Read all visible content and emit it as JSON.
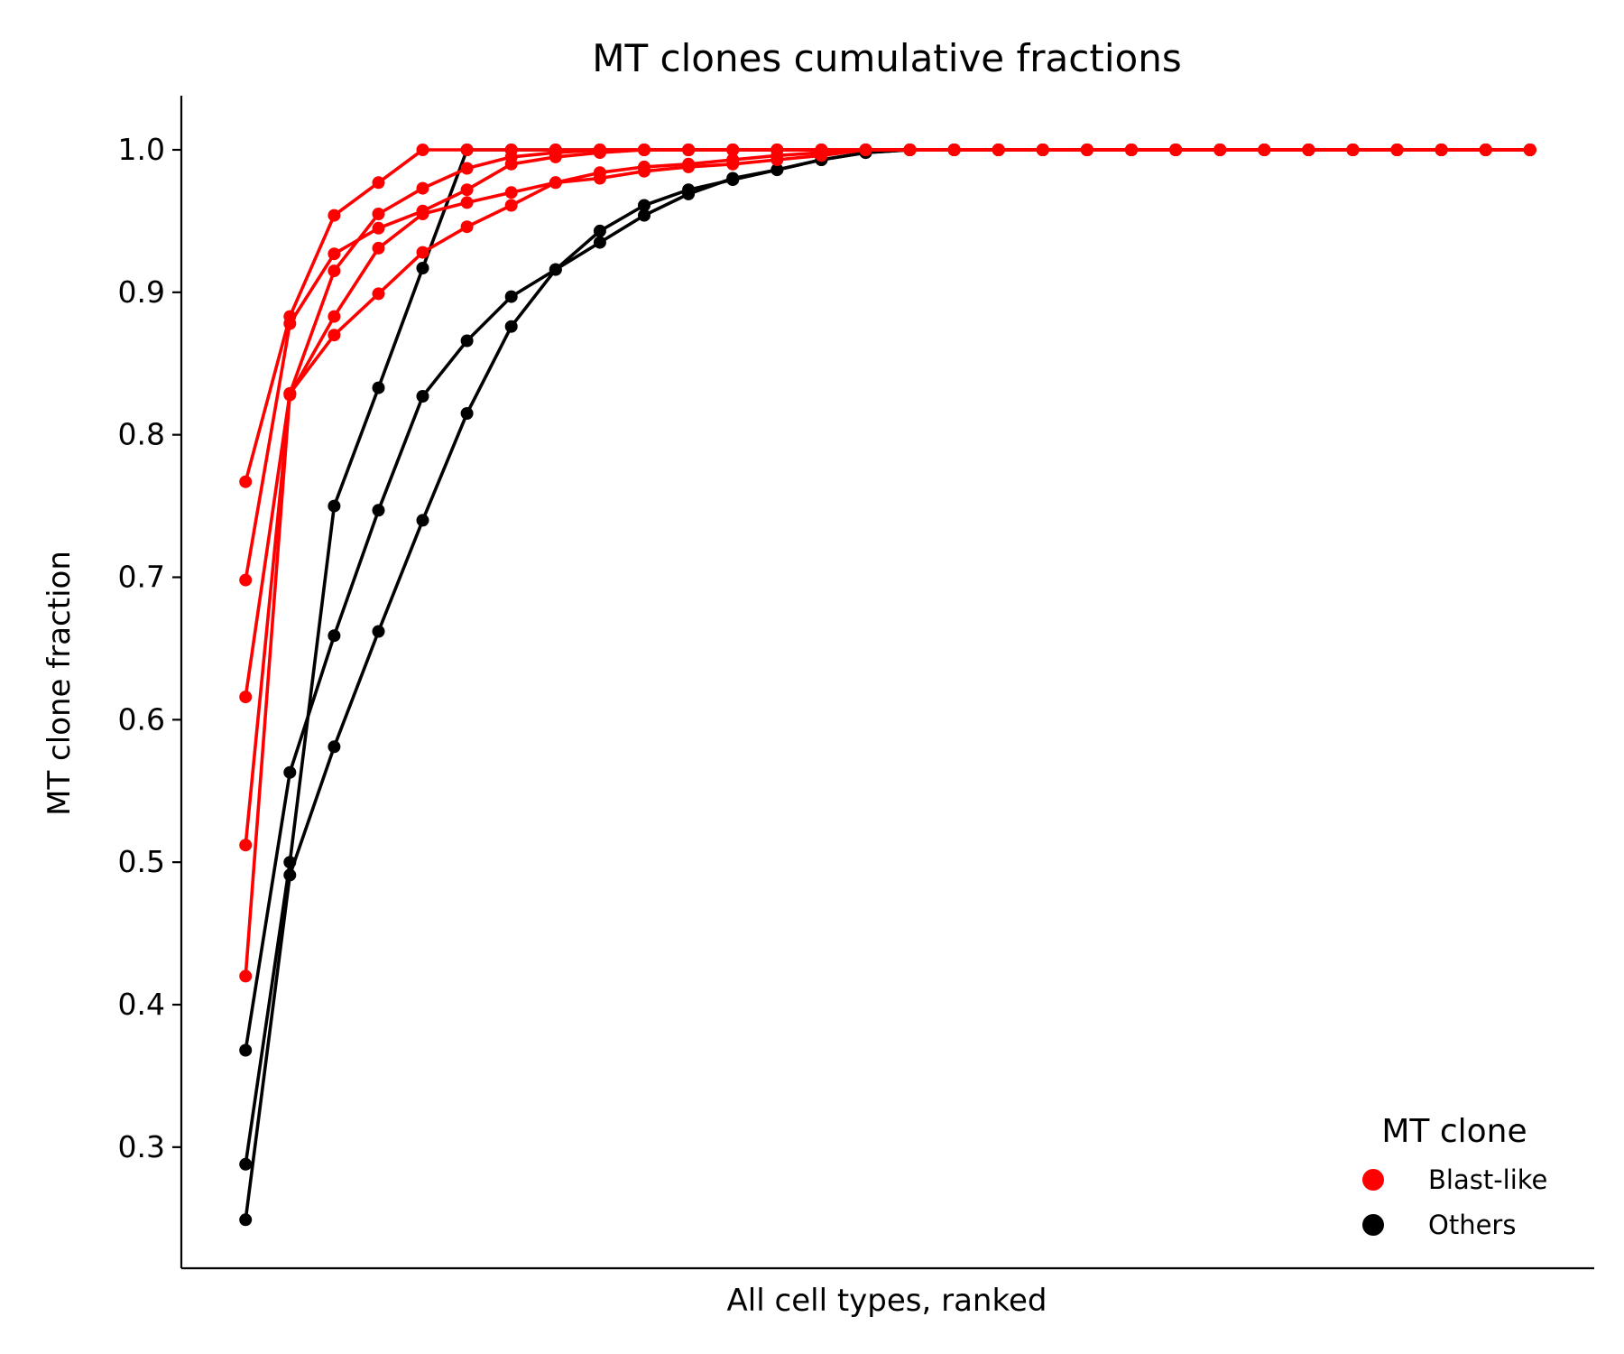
{
  "chart_data": {
    "type": "line",
    "title": "MT clones cumulative fractions",
    "xlabel": "All cell types, ranked",
    "ylabel": "MT clone fraction",
    "ylim": [
      0.215,
      1.038
    ],
    "xlim": [
      -1.45,
      30.45
    ],
    "yticks": [
      0.3,
      0.4,
      0.5,
      0.6,
      0.7,
      0.8,
      0.9,
      1.0
    ],
    "ytick_labels": [
      "0.3",
      "0.4",
      "0.5",
      "0.6",
      "0.7",
      "0.8",
      "0.9",
      "1.0"
    ],
    "grid": false,
    "legend": {
      "title": "MT clone",
      "placement": "lower-right",
      "entries": [
        {
          "label": "Blast-like",
          "color": "#ff0000"
        },
        {
          "label": "Others",
          "color": "#000000"
        }
      ]
    },
    "x": [
      0,
      1,
      2,
      3,
      4,
      5,
      6,
      7,
      8,
      9,
      10,
      11,
      12,
      13,
      14,
      15,
      16,
      17,
      18,
      19,
      20,
      21,
      22,
      23,
      24,
      25,
      26,
      27,
      28,
      29
    ],
    "series": [
      {
        "group": "Others",
        "color": "#000000",
        "values": [
          0.288,
          0.5,
          0.75,
          0.833,
          0.917,
          1.0,
          1.0,
          1.0,
          1.0,
          1.0,
          1.0,
          1.0,
          1.0,
          1.0,
          1.0,
          1.0,
          1.0,
          1.0,
          1.0,
          1.0,
          1.0,
          1.0,
          1.0,
          1.0,
          1.0,
          1.0,
          1.0,
          1.0,
          1.0,
          1.0
        ]
      },
      {
        "group": "Others",
        "color": "#000000",
        "values": [
          0.368,
          0.563,
          0.659,
          0.747,
          0.827,
          0.866,
          0.897,
          0.916,
          0.935,
          0.954,
          0.969,
          0.98,
          0.986,
          0.993,
          0.998,
          1.0,
          1.0,
          1.0,
          1.0,
          1.0,
          1.0,
          1.0,
          1.0,
          1.0,
          1.0,
          1.0,
          1.0,
          1.0,
          1.0,
          1.0
        ]
      },
      {
        "group": "Others",
        "color": "#000000",
        "values": [
          0.249,
          0.491,
          0.581,
          0.662,
          0.74,
          0.815,
          0.876,
          0.916,
          0.943,
          0.961,
          0.972,
          0.979,
          0.986,
          0.993,
          0.998,
          1.0,
          1.0,
          1.0,
          1.0,
          1.0,
          1.0,
          1.0,
          1.0,
          1.0,
          1.0,
          1.0,
          1.0,
          1.0,
          1.0,
          1.0
        ]
      },
      {
        "group": "Blast-like",
        "color": "#ff0000",
        "values": [
          0.767,
          0.883,
          0.954,
          0.977,
          1.0,
          1.0,
          1.0,
          1.0,
          1.0,
          1.0,
          1.0,
          1.0,
          1.0,
          1.0,
          1.0,
          1.0,
          1.0,
          1.0,
          1.0,
          1.0,
          1.0,
          1.0,
          1.0,
          1.0,
          1.0,
          1.0,
          1.0,
          1.0,
          1.0,
          1.0
        ]
      },
      {
        "group": "Blast-like",
        "color": "#ff0000",
        "values": [
          0.698,
          0.878,
          0.927,
          0.945,
          0.957,
          0.972,
          0.99,
          0.995,
          0.998,
          1.0,
          1.0,
          1.0,
          1.0,
          1.0,
          1.0,
          1.0,
          1.0,
          1.0,
          1.0,
          1.0,
          1.0,
          1.0,
          1.0,
          1.0,
          1.0,
          1.0,
          1.0,
          1.0,
          1.0,
          1.0
        ]
      },
      {
        "group": "Blast-like",
        "color": "#ff0000",
        "values": [
          0.616,
          0.829,
          0.915,
          0.955,
          0.973,
          0.987,
          0.995,
          0.998,
          1.0,
          1.0,
          1.0,
          1.0,
          1.0,
          1.0,
          1.0,
          1.0,
          1.0,
          1.0,
          1.0,
          1.0,
          1.0,
          1.0,
          1.0,
          1.0,
          1.0,
          1.0,
          1.0,
          1.0,
          1.0,
          1.0
        ]
      },
      {
        "group": "Blast-like",
        "color": "#ff0000",
        "values": [
          0.512,
          0.828,
          0.883,
          0.931,
          0.955,
          0.963,
          0.97,
          0.977,
          0.984,
          0.988,
          0.99,
          0.993,
          0.996,
          0.998,
          1.0,
          1.0,
          1.0,
          1.0,
          1.0,
          1.0,
          1.0,
          1.0,
          1.0,
          1.0,
          1.0,
          1.0,
          1.0,
          1.0,
          1.0,
          1.0
        ]
      },
      {
        "group": "Blast-like",
        "color": "#ff0000",
        "values": [
          0.42,
          0.829,
          0.87,
          0.899,
          0.928,
          0.946,
          0.961,
          0.977,
          0.98,
          0.985,
          0.988,
          0.99,
          0.993,
          0.996,
          1.0,
          1.0,
          1.0,
          1.0,
          1.0,
          1.0,
          1.0,
          1.0,
          1.0,
          1.0,
          1.0,
          1.0,
          1.0,
          1.0,
          1.0,
          1.0
        ]
      }
    ]
  }
}
